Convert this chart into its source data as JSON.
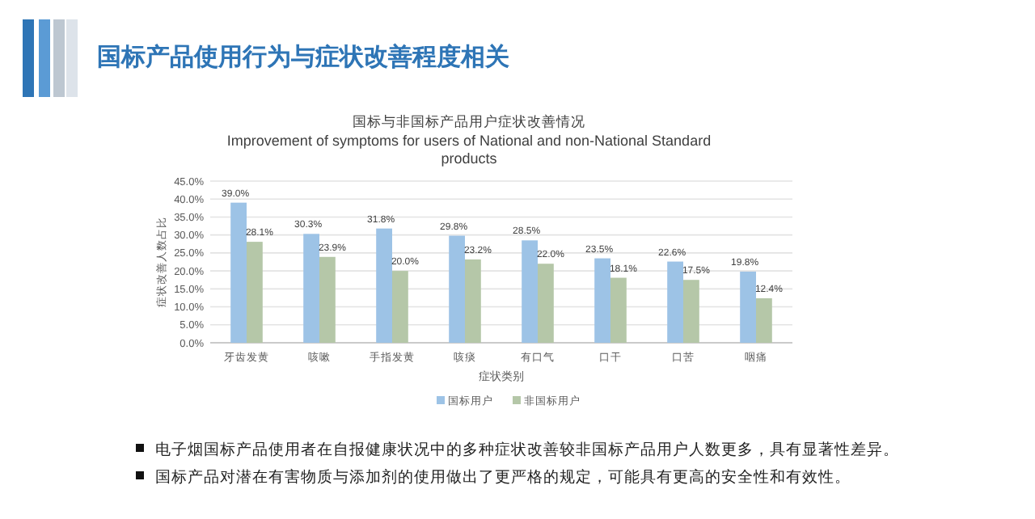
{
  "chart_data": {
    "type": "bar",
    "title": "国标产品使用行为与症状改善程度相关",
    "subtitle": "国标与非国标产品用户症状改善情况",
    "annotations": [
      "Improvement of symptoms for users of National and non-National Standard products",
      "电子烟国标产品使用者在自报健康状况中的多种症状改善较非国标产品用户人数更多，具有显著性差异。",
      "国标产品对潜在有害物质与添加剂的使用做出了更严格的规定，可能具有更高的安全性和有效性。"
    ],
    "xlabel": "症状类别",
    "ylabel": "症状改善人数占比",
    "categories": [
      "牙齿发黄",
      "咳嗽",
      "手指发黄",
      "咳痰",
      "有口气",
      "口干",
      "口苦",
      "咽痛"
    ],
    "series": [
      {
        "name": "国标用户",
        "color": "#9dc3e6",
        "values": [
          39.0,
          30.3,
          31.8,
          29.8,
          28.5,
          23.5,
          22.6,
          19.8
        ],
        "value_labels": [
          "39.0%",
          "30.3%",
          "31.8%",
          "29.8%",
          "28.5%",
          "23.5%",
          "22.6%",
          "19.8%"
        ]
      },
      {
        "name": "非国标用户",
        "color": "#b5c7a8",
        "values": [
          28.1,
          23.9,
          20.0,
          23.2,
          22.0,
          18.1,
          17.5,
          12.4
        ],
        "value_labels": [
          "28.1%",
          "23.9%",
          "20.0%",
          "23.2%",
          "22.0%",
          "18.1%",
          "17.5%",
          "12.4%"
        ]
      }
    ],
    "ylim": [
      0,
      45
    ],
    "yticks": [
      {
        "value": 0,
        "label": "0.0%"
      },
      {
        "value": 5,
        "label": "5.0%"
      },
      {
        "value": 10,
        "label": "10.0%"
      },
      {
        "value": 15,
        "label": "15.0%"
      },
      {
        "value": 20,
        "label": "20.0%"
      },
      {
        "value": 25,
        "label": "25.0%"
      },
      {
        "value": 30,
        "label": "30.0%"
      },
      {
        "value": 35,
        "label": "35.0%"
      },
      {
        "value": 40,
        "label": "40.0%"
      },
      {
        "value": 45,
        "label": "45.0%"
      }
    ],
    "grid": "y",
    "legend": "bottom"
  }
}
